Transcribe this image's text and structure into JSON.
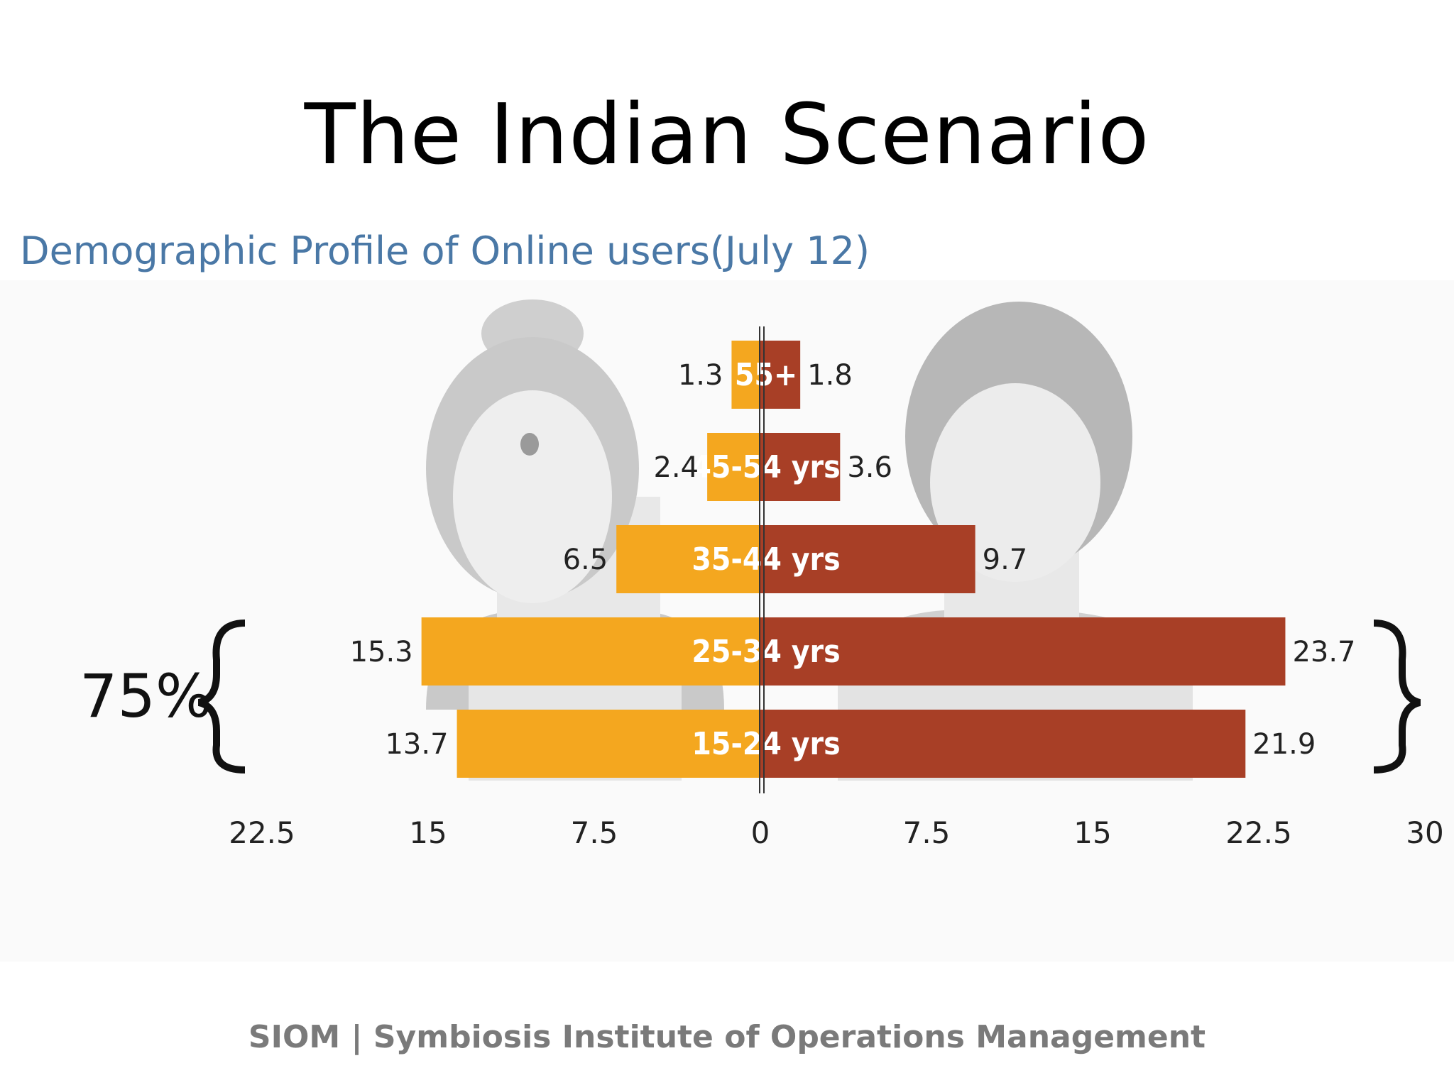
{
  "slide_title": "The Indian Scenario",
  "footer": "SIOM | Symbiosis Institute of Operations Management",
  "colors": {
    "female": "#f4a71f",
    "male": "#a83f26",
    "title_blue": "#4a78a6"
  },
  "icons": {
    "left": "female-silhouette-icon",
    "right": "male-silhouette-icon"
  },
  "chart_data": {
    "type": "bar",
    "orientation": "horizontal-diverging",
    "title": "Demographic Profile of Online users(July 12)",
    "categories": [
      "55+",
      "45-54 yrs",
      "35-44 yrs",
      "25-34 yrs",
      "15-24 yrs"
    ],
    "series": [
      {
        "values": [
          1.3,
          2.4,
          6.5,
          15.3,
          13.7
        ],
        "color": "#f4a71f",
        "side": "left"
      },
      {
        "values": [
          1.8,
          3.6,
          9.7,
          23.7,
          21.9
        ],
        "color": "#a83f26",
        "side": "right"
      }
    ],
    "left_ticks": [
      "22.5",
      "15",
      "7.5"
    ],
    "right_ticks": [
      "0",
      "7.5",
      "15",
      "22.5",
      "30"
    ],
    "xlim": [
      -22.5,
      30
    ],
    "bracket_annotation": "75%",
    "grid": false
  }
}
